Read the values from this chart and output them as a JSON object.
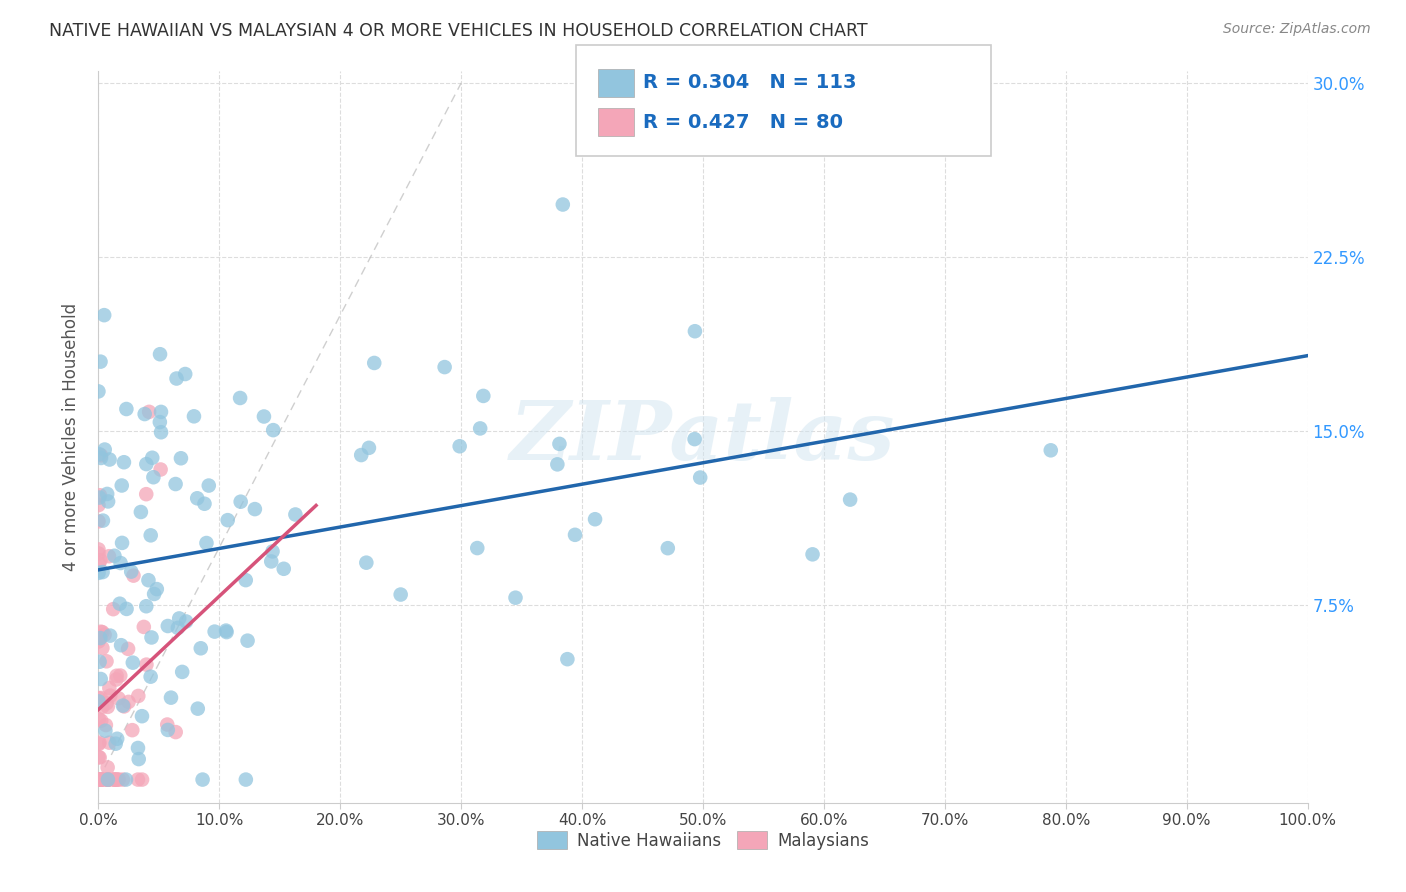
{
  "title": "NATIVE HAWAIIAN VS MALAYSIAN 4 OR MORE VEHICLES IN HOUSEHOLD CORRELATION CHART",
  "source": "Source: ZipAtlas.com",
  "ylabel_label": "4 or more Vehicles in Household",
  "r_nh": 0.304,
  "n_nh": 113,
  "r_ma": 0.427,
  "n_ma": 80,
  "color_nh": "#92c5de",
  "color_ma": "#f4a6b8",
  "color_nh_line": "#2166ac",
  "color_ma_line": "#d6537a",
  "watermark": "ZIPatlas",
  "xmin": 0.0,
  "xmax": 1.0,
  "ymin": -0.01,
  "ymax": 0.305,
  "nh_intercept": 0.095,
  "nh_slope": 0.085,
  "ma_intercept": 0.01,
  "ma_slope": 1.05
}
